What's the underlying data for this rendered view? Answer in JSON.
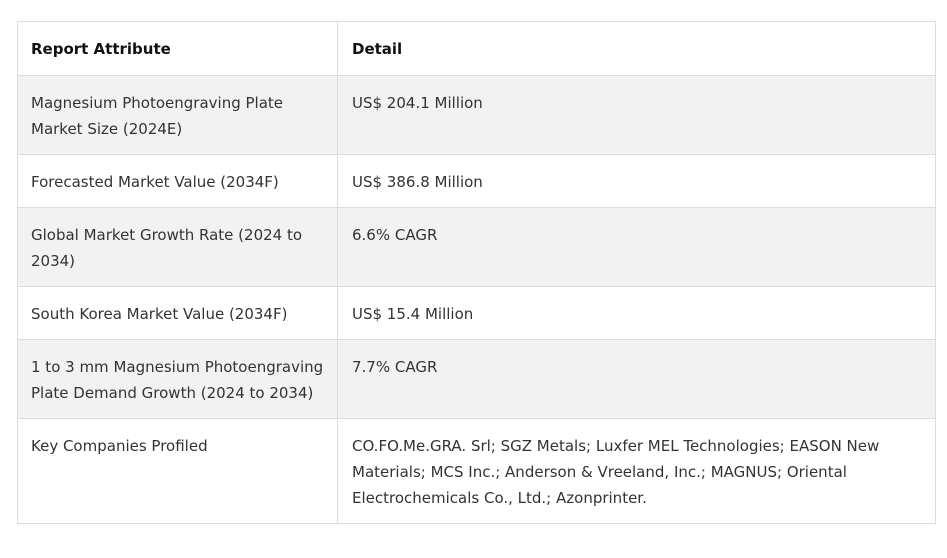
{
  "table": {
    "headers": [
      "Report Attribute",
      "Detail"
    ],
    "rows": [
      {
        "attribute": "Magnesium Photoengraving Plate Market Size (2024E)",
        "detail": "US$ 204.1 Million"
      },
      {
        "attribute": "Forecasted Market Value (2034F)",
        "detail": "US$ 386.8 Million"
      },
      {
        "attribute": "Global Market Growth Rate (2024 to 2034)",
        "detail": "6.6% CAGR"
      },
      {
        "attribute": "South Korea Market Value (2034F)",
        "detail": "US$ 15.4 Million"
      },
      {
        "attribute": "1 to 3 mm Magnesium Photoengraving Plate Demand Growth (2024 to 2034)",
        "detail": "7.7% CAGR"
      },
      {
        "attribute": "Key Companies Profiled",
        "detail": "CO.FO.Me.GRA. Srl; SGZ Metals; Luxfer MEL Technologies; EASON New Materials; MCS Inc.; Anderson & Vreeland, Inc.; MAGNUS; Oriental Electrochemicals Co., Ltd.; Azonprinter."
      }
    ]
  }
}
